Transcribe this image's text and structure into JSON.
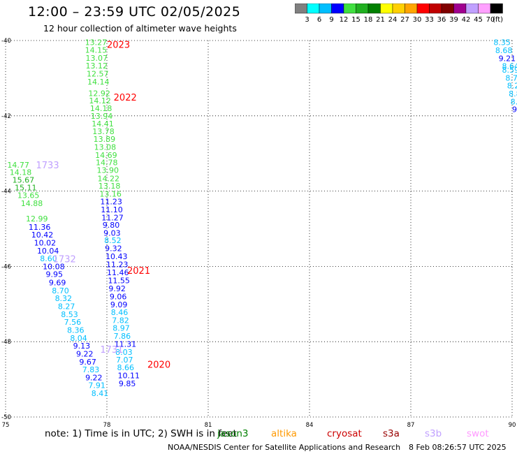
{
  "header": {
    "title": "12:00 – 23:59 UTC 02/05/2025",
    "subtitle": "12 hour collection of altimeter wave heights"
  },
  "color_scale": {
    "ticks": [
      "3",
      "6",
      "9",
      "12",
      "15",
      "18",
      "21",
      "24",
      "27",
      "30",
      "33",
      "36",
      "39",
      "42",
      "45",
      "70"
    ],
    "unit": "(ft)",
    "colors": [
      "#808080",
      "#00ffff",
      "#00bfff",
      "#0000ff",
      "#40e040",
      "#20b020",
      "#008000",
      "#ffff00",
      "#ffd000",
      "#ffa500",
      "#ff0000",
      "#c00000",
      "#800000",
      "#a00090",
      "#c0a0ff",
      "#ffa0ff",
      "#000000"
    ]
  },
  "footer": {
    "note": "note:  1) Time is in UTC;  2) SWH is in feet",
    "satellites": [
      {
        "name": "jason3",
        "color": "#008000"
      },
      {
        "name": "altika",
        "color": "#ff9900"
      },
      {
        "name": "cryosat",
        "color": "#cc0000"
      },
      {
        "name": "s3a",
        "color": "#990000"
      },
      {
        "name": "s3b",
        "color": "#c0a0ff"
      },
      {
        "name": "swot",
        "color": "#ff99ff"
      }
    ],
    "credit": "NOAA/NESDIS Center for Satellite Applications and Research",
    "timestamp": "8 Feb 08:26:57 UTC 2025"
  },
  "chart_data": {
    "type": "scatter",
    "xlim": [
      75,
      90
    ],
    "ylim": [
      -50,
      -40
    ],
    "x_ticks": [
      "75",
      "78",
      "81",
      "84",
      "87",
      "90"
    ],
    "y_ticks": [
      "-40",
      "-42",
      "-44",
      "-46",
      "-48",
      "-50"
    ],
    "grid": true,
    "time_labels": [
      {
        "text": "2023",
        "x": 78.0,
        "y": -40.1,
        "color": "#ff0000"
      },
      {
        "text": "2022",
        "x": 78.2,
        "y": -41.5,
        "color": "#ff0000"
      },
      {
        "text": "1733",
        "x": 75.9,
        "y": -43.3,
        "color": "#c0a0ff"
      },
      {
        "text": "1732",
        "x": 76.4,
        "y": -45.8,
        "color": "#c0a0ff"
      },
      {
        "text": "2021",
        "x": 78.6,
        "y": -46.1,
        "color": "#ff0000"
      },
      {
        "text": "1731",
        "x": 77.8,
        "y": -48.2,
        "color": "#c0a0ff"
      },
      {
        "text": "2020",
        "x": 79.2,
        "y": -48.6,
        "color": "#ff0000"
      }
    ],
    "points": [
      {
        "x": 77.35,
        "y": -40.05,
        "v": "13.27",
        "c": "#40e040"
      },
      {
        "x": 77.35,
        "y": -40.25,
        "v": "14.15",
        "c": "#40e040"
      },
      {
        "x": 77.37,
        "y": -40.46,
        "v": "13.07",
        "c": "#40e040"
      },
      {
        "x": 77.37,
        "y": -40.67,
        "v": "13.12",
        "c": "#40e040"
      },
      {
        "x": 77.4,
        "y": -40.88,
        "v": "12.57",
        "c": "#40e040"
      },
      {
        "x": 77.42,
        "y": -41.09,
        "v": "14.14",
        "c": "#40e040"
      },
      {
        "x": 77.45,
        "y": -41.4,
        "v": "12.92",
        "c": "#40e040"
      },
      {
        "x": 77.47,
        "y": -41.6,
        "v": "14.12",
        "c": "#40e040"
      },
      {
        "x": 77.5,
        "y": -41.8,
        "v": "14.18",
        "c": "#40e040"
      },
      {
        "x": 77.52,
        "y": -42.0,
        "v": "13.94",
        "c": "#40e040"
      },
      {
        "x": 77.55,
        "y": -42.21,
        "v": "14.41",
        "c": "#40e040"
      },
      {
        "x": 77.57,
        "y": -42.41,
        "v": "13.78",
        "c": "#40e040"
      },
      {
        "x": 77.6,
        "y": -42.62,
        "v": "13.89",
        "c": "#40e040"
      },
      {
        "x": 77.62,
        "y": -42.83,
        "v": "13.08",
        "c": "#40e040"
      },
      {
        "x": 77.65,
        "y": -43.04,
        "v": "14.69",
        "c": "#40e040"
      },
      {
        "x": 77.67,
        "y": -43.24,
        "v": "14.78",
        "c": "#40e040"
      },
      {
        "x": 77.7,
        "y": -43.44,
        "v": "13.90",
        "c": "#40e040"
      },
      {
        "x": 77.72,
        "y": -43.66,
        "v": "14.22",
        "c": "#40e040"
      },
      {
        "x": 77.75,
        "y": -43.86,
        "v": "13.18",
        "c": "#40e040"
      },
      {
        "x": 77.78,
        "y": -44.07,
        "v": "13.16",
        "c": "#40e040"
      },
      {
        "x": 77.8,
        "y": -44.28,
        "v": "11.23",
        "c": "#0000ff"
      },
      {
        "x": 77.82,
        "y": -44.49,
        "v": "11.10",
        "c": "#0000ff"
      },
      {
        "x": 77.84,
        "y": -44.7,
        "v": "11.27",
        "c": "#0000ff"
      },
      {
        "x": 77.87,
        "y": -44.9,
        "v": "9.80",
        "c": "#0000ff"
      },
      {
        "x": 77.9,
        "y": -45.11,
        "v": "9.03",
        "c": "#0000ff"
      },
      {
        "x": 77.92,
        "y": -45.31,
        "v": "8.52",
        "c": "#00bfff"
      },
      {
        "x": 77.94,
        "y": -45.52,
        "v": "9.32",
        "c": "#0000ff"
      },
      {
        "x": 77.96,
        "y": -45.73,
        "v": "10.43",
        "c": "#0000ff"
      },
      {
        "x": 77.98,
        "y": -45.95,
        "v": "11.23",
        "c": "#0000ff"
      },
      {
        "x": 78.0,
        "y": -46.16,
        "v": "11.46",
        "c": "#0000ff"
      },
      {
        "x": 78.03,
        "y": -46.37,
        "v": "11.55",
        "c": "#0000ff"
      },
      {
        "x": 78.05,
        "y": -46.59,
        "v": "9.92",
        "c": "#0000ff"
      },
      {
        "x": 78.08,
        "y": -46.8,
        "v": "9.06",
        "c": "#0000ff"
      },
      {
        "x": 78.1,
        "y": -47.01,
        "v": "9.09",
        "c": "#0000ff"
      },
      {
        "x": 78.12,
        "y": -47.22,
        "v": "8.46",
        "c": "#00bfff"
      },
      {
        "x": 78.15,
        "y": -47.43,
        "v": "7.82",
        "c": "#00bfff"
      },
      {
        "x": 78.17,
        "y": -47.63,
        "v": "8.97",
        "c": "#00bfff"
      },
      {
        "x": 78.2,
        "y": -47.85,
        "v": "7.86",
        "c": "#00bfff"
      },
      {
        "x": 78.22,
        "y": -48.06,
        "v": "11.31",
        "c": "#0000ff"
      },
      {
        "x": 78.25,
        "y": -48.27,
        "v": "8.03",
        "c": "#00bfff"
      },
      {
        "x": 78.27,
        "y": -48.48,
        "v": "7.07",
        "c": "#00bfff"
      },
      {
        "x": 78.3,
        "y": -48.68,
        "v": "8.66",
        "c": "#00bfff"
      },
      {
        "x": 78.32,
        "y": -48.9,
        "v": "10.11",
        "c": "#0000ff"
      },
      {
        "x": 78.35,
        "y": -49.11,
        "v": "9.85",
        "c": "#0000ff"
      },
      {
        "x": 75.05,
        "y": -43.3,
        "v": "14.77",
        "c": "#40e040"
      },
      {
        "x": 75.12,
        "y": -43.5,
        "v": "14.18",
        "c": "#40e040"
      },
      {
        "x": 75.2,
        "y": -43.7,
        "v": "15.67",
        "c": "#20b020"
      },
      {
        "x": 75.27,
        "y": -43.91,
        "v": "15.11",
        "c": "#20b020"
      },
      {
        "x": 75.35,
        "y": -44.11,
        "v": "13.65",
        "c": "#40e040"
      },
      {
        "x": 75.45,
        "y": -44.32,
        "v": "14.88",
        "c": "#40e040"
      },
      {
        "x": 75.6,
        "y": -44.73,
        "v": "12.99",
        "c": "#40e040"
      },
      {
        "x": 75.68,
        "y": -44.95,
        "v": "11.36",
        "c": "#0000ff"
      },
      {
        "x": 75.76,
        "y": -45.16,
        "v": "10.42",
        "c": "#0000ff"
      },
      {
        "x": 75.84,
        "y": -45.37,
        "v": "10.02",
        "c": "#0000ff"
      },
      {
        "x": 75.93,
        "y": -45.58,
        "v": "10.04",
        "c": "#0000ff"
      },
      {
        "x": 76.02,
        "y": -45.79,
        "v": "8.60",
        "c": "#00bfff"
      },
      {
        "x": 76.1,
        "y": -46.0,
        "v": "10.08",
        "c": "#0000ff"
      },
      {
        "x": 76.19,
        "y": -46.21,
        "v": "9.95",
        "c": "#0000ff"
      },
      {
        "x": 76.28,
        "y": -46.43,
        "v": "9.69",
        "c": "#0000ff"
      },
      {
        "x": 76.37,
        "y": -46.64,
        "v": "8.70",
        "c": "#00bfff"
      },
      {
        "x": 76.46,
        "y": -46.85,
        "v": "8.32",
        "c": "#00bfff"
      },
      {
        "x": 76.55,
        "y": -47.06,
        "v": "8.27",
        "c": "#00bfff"
      },
      {
        "x": 76.64,
        "y": -47.27,
        "v": "8.53",
        "c": "#00bfff"
      },
      {
        "x": 76.73,
        "y": -47.48,
        "v": "7.56",
        "c": "#00bfff"
      },
      {
        "x": 76.82,
        "y": -47.69,
        "v": "8.36",
        "c": "#00bfff"
      },
      {
        "x": 76.91,
        "y": -47.9,
        "v": "8.04",
        "c": "#00bfff"
      },
      {
        "x": 77.0,
        "y": -48.11,
        "v": "9.13",
        "c": "#0000ff"
      },
      {
        "x": 77.09,
        "y": -48.32,
        "v": "9.22",
        "c": "#0000ff"
      },
      {
        "x": 77.18,
        "y": -48.53,
        "v": "9.67",
        "c": "#0000ff"
      },
      {
        "x": 77.27,
        "y": -48.74,
        "v": "7.83",
        "c": "#00bfff"
      },
      {
        "x": 77.36,
        "y": -48.95,
        "v": "9.22",
        "c": "#0000ff"
      },
      {
        "x": 77.45,
        "y": -49.16,
        "v": "7.91",
        "c": "#00bfff"
      },
      {
        "x": 77.54,
        "y": -49.37,
        "v": "8.41",
        "c": "#00bfff"
      },
      {
        "x": 89.45,
        "y": -40.05,
        "v": "8.35",
        "c": "#00bfff"
      },
      {
        "x": 89.5,
        "y": -40.26,
        "v": "8.68",
        "c": "#00bfff"
      },
      {
        "x": 89.6,
        "y": -40.47,
        "v": "9.21",
        "c": "#0000ff"
      },
      {
        "x": 89.7,
        "y": -40.68,
        "v": "8.64",
        "c": "#00bfff"
      },
      {
        "x": 89.7,
        "y": -40.78,
        "v": "8.59",
        "c": "#00bfff"
      },
      {
        "x": 89.8,
        "y": -40.99,
        "v": "8.73",
        "c": "#00bfff"
      },
      {
        "x": 89.85,
        "y": -41.2,
        "v": "8.2",
        "c": "#00bfff"
      },
      {
        "x": 89.9,
        "y": -41.41,
        "v": "8.8",
        "c": "#00bfff"
      },
      {
        "x": 89.95,
        "y": -41.62,
        "v": "8.",
        "c": "#00bfff"
      },
      {
        "x": 90.0,
        "y": -41.83,
        "v": "9",
        "c": "#0000ff"
      }
    ]
  }
}
